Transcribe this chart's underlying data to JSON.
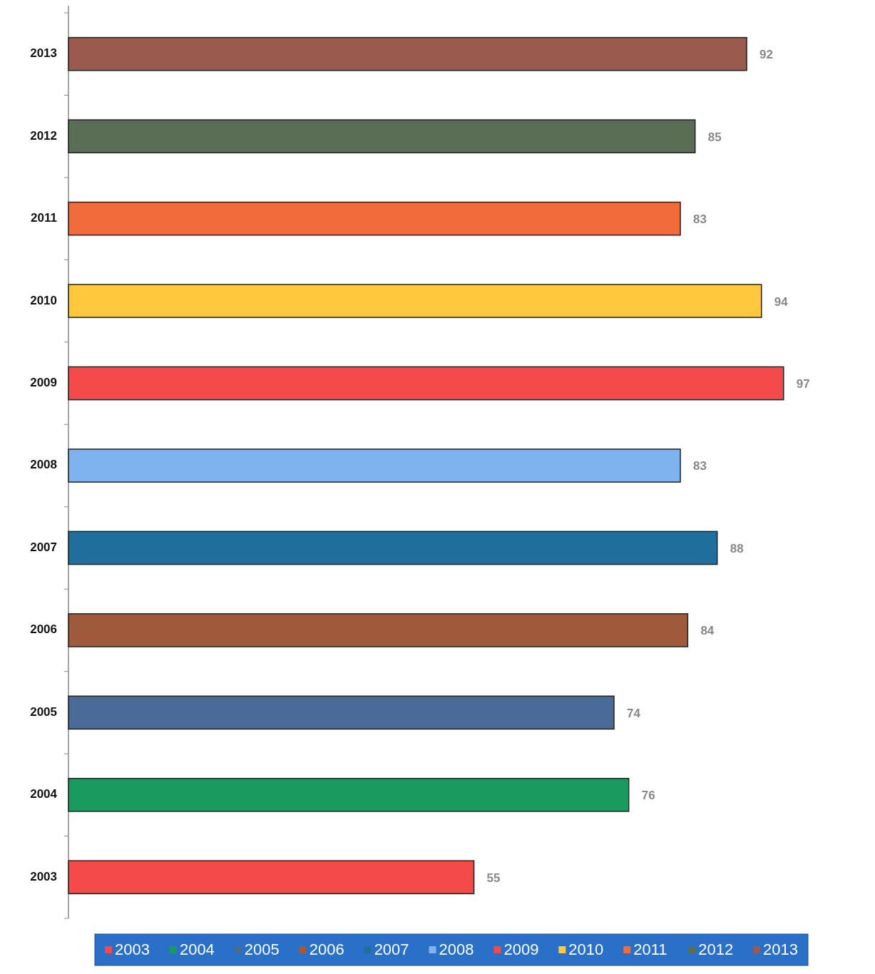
{
  "chart_data": {
    "type": "bar",
    "orientation": "horizontal",
    "categories": [
      "2013",
      "2012",
      "2011",
      "2010",
      "2009",
      "2008",
      "2007",
      "2006",
      "2005",
      "2004",
      "2003"
    ],
    "series": [
      {
        "name": "2003",
        "color": "#f44a4a",
        "values": [
          null,
          null,
          null,
          null,
          null,
          null,
          null,
          null,
          null,
          null,
          55
        ]
      },
      {
        "name": "2004",
        "color": "#1a9a5e",
        "values": [
          null,
          null,
          null,
          null,
          null,
          null,
          null,
          null,
          null,
          76,
          null
        ]
      },
      {
        "name": "2005",
        "color": "#4a6a98",
        "values": [
          null,
          null,
          null,
          null,
          null,
          null,
          null,
          null,
          74,
          null,
          null
        ]
      },
      {
        "name": "2006",
        "color": "#9e5a3a",
        "values": [
          null,
          null,
          null,
          null,
          null,
          null,
          null,
          84,
          null,
          null,
          null
        ]
      },
      {
        "name": "2007",
        "color": "#1f6e9c",
        "values": [
          null,
          null,
          null,
          null,
          null,
          null,
          88,
          null,
          null,
          null,
          null
        ]
      },
      {
        "name": "2008",
        "color": "#7fb3f0",
        "values": [
          null,
          null,
          null,
          null,
          null,
          83,
          null,
          null,
          null,
          null,
          null
        ]
      },
      {
        "name": "2009",
        "color": "#f44a4a",
        "values": [
          null,
          null,
          null,
          null,
          97,
          null,
          null,
          null,
          null,
          null,
          null
        ]
      },
      {
        "name": "2010",
        "color": "#ffc83d",
        "values": [
          null,
          null,
          null,
          94,
          null,
          null,
          null,
          null,
          null,
          null,
          null
        ]
      },
      {
        "name": "2011",
        "color": "#f26b3a",
        "values": [
          null,
          null,
          83,
          null,
          null,
          null,
          null,
          null,
          null,
          null,
          null
        ]
      },
      {
        "name": "2012",
        "color": "#5a6e55",
        "values": [
          null,
          85,
          null,
          null,
          null,
          null,
          null,
          null,
          null,
          null,
          null
        ]
      },
      {
        "name": "2013",
        "color": "#9a5a4e",
        "values": [
          92,
          null,
          null,
          null,
          null,
          null,
          null,
          null,
          null,
          null,
          null
        ]
      }
    ],
    "data_labels": true,
    "legend": "bottom"
  }
}
